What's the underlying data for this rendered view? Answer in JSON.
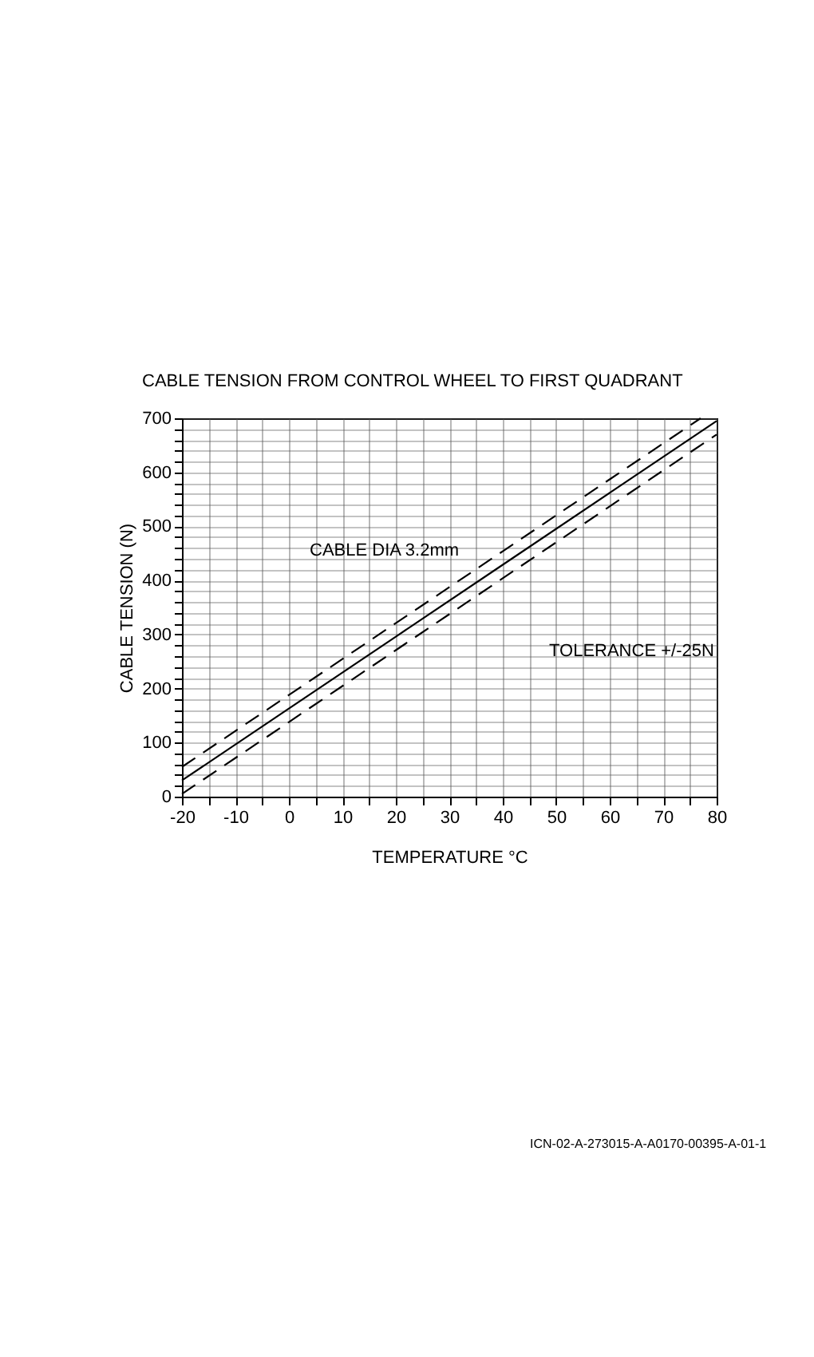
{
  "chart_data": {
    "type": "line",
    "title": "CABLE TENSION FROM CONTROL WHEEL TO FIRST QUADRANT",
    "xlabel": "TEMPERATURE °C",
    "ylabel": "CABLE TENSION (N)",
    "annotations": [
      "CABLE DIA 3.2mm",
      "TOLERANCE +/-25N",
      "ICN-02-A-273015-A-A0170-00395-A-01-1"
    ],
    "series": [
      {
        "color": "#000000",
        "line_style": "solid",
        "x": [
          -20,
          0,
          20,
          40,
          60,
          80
        ],
        "values": [
          30,
          163,
          296,
          429,
          562,
          695
        ]
      },
      {
        "color": "#000000",
        "line_style": "dashed",
        "x": [
          -20,
          0,
          20,
          40,
          60,
          77
        ],
        "values": [
          55,
          188,
          321,
          454,
          587,
          700
        ]
      },
      {
        "color": "#000000",
        "line_style": "dashed",
        "x": [
          -20,
          0,
          20,
          40,
          60,
          80
        ],
        "values": [
          5,
          138,
          271,
          404,
          537,
          670
        ]
      }
    ],
    "xlim": [
      -20,
      80
    ],
    "ylim": [
      0,
      700
    ],
    "xticks": [
      -20,
      {
        "value": -15,
        "label": null
      },
      -10,
      {
        "value": -5,
        "label": null
      },
      0,
      {
        "value": 5,
        "label": null
      },
      10,
      {
        "value": 15,
        "label": null
      },
      20,
      {
        "value": 25,
        "label": null
      },
      30,
      {
        "value": 35,
        "label": null
      },
      40,
      {
        "value": 45,
        "label": null
      },
      50,
      {
        "value": 55,
        "label": null
      },
      60,
      {
        "value": 65,
        "label": null
      },
      70,
      {
        "value": 75,
        "label": null
      },
      80
    ],
    "yticks": [
      0,
      {
        "value": 20,
        "label": null
      },
      {
        "value": 40,
        "label": null
      },
      {
        "value": 60,
        "label": null
      },
      {
        "value": 80,
        "label": null
      },
      100,
      {
        "value": 120,
        "label": null
      },
      {
        "value": 140,
        "label": null
      },
      {
        "value": 160,
        "label": null
      },
      {
        "value": 180,
        "label": null
      },
      200,
      {
        "value": 220,
        "label": null
      },
      {
        "value": 240,
        "label": null
      },
      {
        "value": 260,
        "label": null
      },
      {
        "value": 280,
        "label": null
      },
      300,
      {
        "value": 320,
        "label": null
      },
      {
        "value": 340,
        "label": null
      },
      {
        "value": 360,
        "label": null
      },
      {
        "value": 380,
        "label": null
      },
      400,
      {
        "value": 420,
        "label": null
      },
      {
        "value": 440,
        "label": null
      },
      {
        "value": 460,
        "label": null
      },
      {
        "value": 480,
        "label": null
      },
      500,
      {
        "value": 520,
        "label": null
      },
      {
        "value": 540,
        "label": null
      },
      {
        "value": 560,
        "label": null
      },
      {
        "value": 580,
        "label": null
      },
      600,
      {
        "value": 620,
        "label": null
      },
      {
        "value": 640,
        "label": null
      },
      {
        "value": 660,
        "label": null
      },
      {
        "value": 680,
        "label": null
      },
      700
    ],
    "grid": true,
    "marker": "none"
  }
}
